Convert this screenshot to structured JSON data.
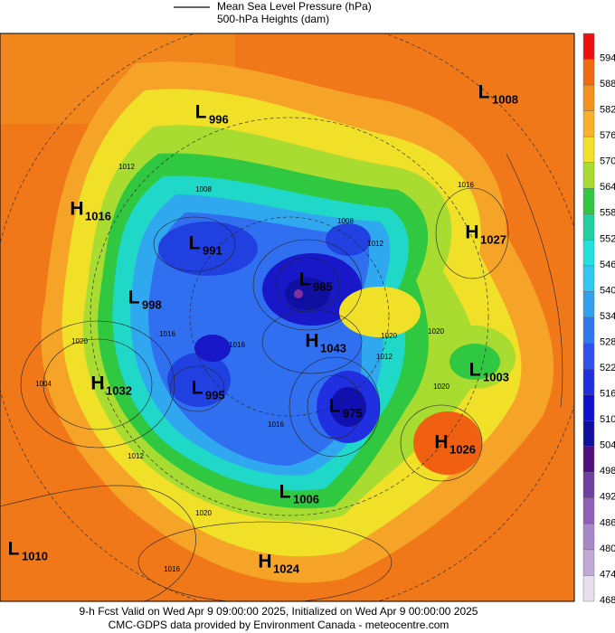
{
  "header": {
    "line_label": "Mean Sea Level Pressure (hPa)",
    "fill_label": "500-hPa Heights (dam)"
  },
  "colorbar": [
    {
      "label": "594",
      "color": "#ee1010"
    },
    {
      "label": "588",
      "color": "#f06a10"
    },
    {
      "label": "582",
      "color": "#f5901e"
    },
    {
      "label": "576",
      "color": "#f8b02a"
    },
    {
      "label": "570",
      "color": "#f0e028"
    },
    {
      "label": "564",
      "color": "#a8dc30"
    },
    {
      "label": "558",
      "color": "#30c840"
    },
    {
      "label": "552",
      "color": "#20d0a0"
    },
    {
      "label": "546",
      "color": "#20e0e0"
    },
    {
      "label": "540",
      "color": "#30c8f0"
    },
    {
      "label": "534",
      "color": "#30a0f0"
    },
    {
      "label": "528",
      "color": "#3078f0"
    },
    {
      "label": "522",
      "color": "#3050f0"
    },
    {
      "label": "516",
      "color": "#2030e0"
    },
    {
      "label": "510",
      "color": "#1010d0"
    },
    {
      "label": "504",
      "color": "#1010a0"
    },
    {
      "label": "498",
      "color": "#501080"
    },
    {
      "label": "492",
      "color": "#7040a0"
    },
    {
      "label": "486",
      "color": "#9060b8"
    },
    {
      "label": "480",
      "color": "#a888c8"
    },
    {
      "label": "474",
      "color": "#c0a8d8"
    },
    {
      "label": "468",
      "color": "#e8e0f0"
    }
  ],
  "pressure_centers": [
    {
      "letter": "L",
      "value": "996"
    },
    {
      "letter": "L",
      "value": "1008"
    },
    {
      "letter": "H",
      "value": "1016"
    },
    {
      "letter": "H",
      "value": "1027"
    },
    {
      "letter": "L",
      "value": "991"
    },
    {
      "letter": "L",
      "value": "985"
    },
    {
      "letter": "L",
      "value": "998"
    },
    {
      "letter": "H",
      "value": "1043"
    },
    {
      "letter": "L",
      "value": "1003"
    },
    {
      "letter": "H",
      "value": "1032"
    },
    {
      "letter": "L",
      "value": "995"
    },
    {
      "letter": "L",
      "value": "975"
    },
    {
      "letter": "H",
      "value": "1026"
    },
    {
      "letter": "L",
      "value": "1006"
    },
    {
      "letter": "L",
      "value": "1010"
    },
    {
      "letter": "H",
      "value": "1024"
    }
  ],
  "isobar_labels": [
    "1012",
    "1008",
    "1016",
    "1008",
    "1012",
    "1020",
    "1016",
    "1016",
    "1020",
    "1012",
    "1020",
    "1016",
    "1020",
    "1012",
    "1020",
    "1016",
    "1004"
  ],
  "footer": {
    "valid": "9-h Fcst Valid on Wed Apr  9 09:00:00 2025, Initialized on Wed Apr  9 00:00:00 2025",
    "credit": "CMC-GDPS data provided by Environment Canada - meteocentre.com"
  }
}
